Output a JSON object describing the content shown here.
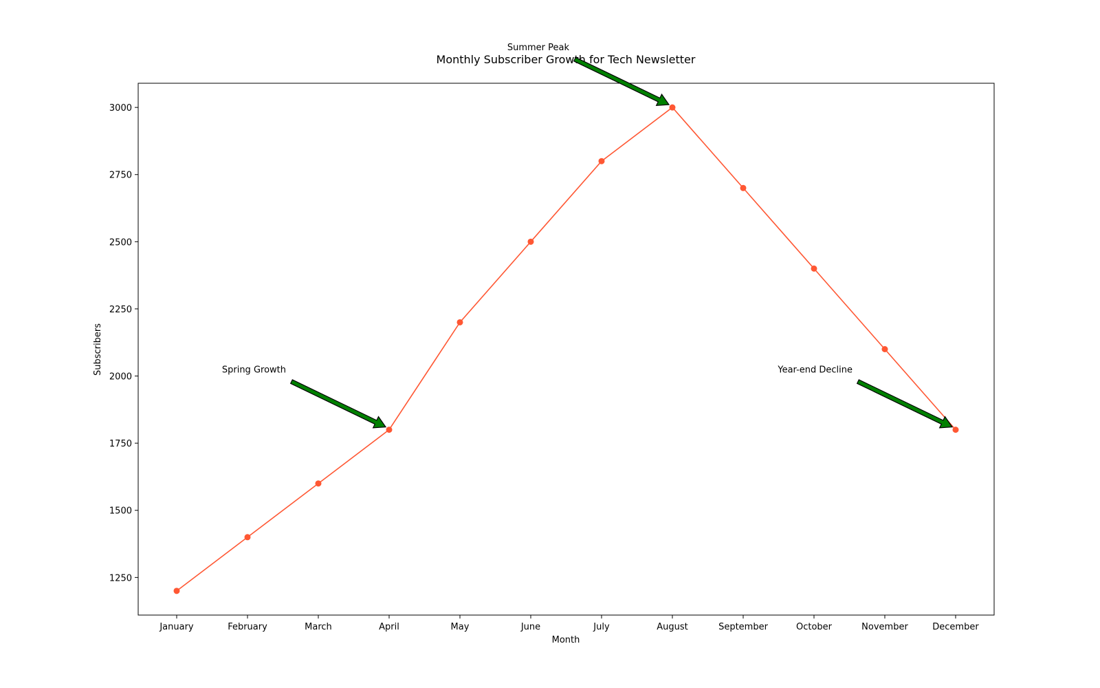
{
  "chart_data": {
    "type": "line",
    "title": "Monthly Subscriber Growth for Tech Newsletter",
    "xlabel": "Month",
    "ylabel": "Subscribers",
    "categories": [
      "January",
      "February",
      "March",
      "April",
      "May",
      "June",
      "July",
      "August",
      "September",
      "October",
      "November",
      "December"
    ],
    "values": [
      1200,
      1400,
      1600,
      1800,
      2200,
      2500,
      2800,
      3000,
      2700,
      2400,
      2100,
      1800
    ],
    "yticks": [
      1250,
      1500,
      1750,
      2000,
      2250,
      2500,
      2750,
      3000
    ],
    "ylim": [
      1110,
      3090
    ],
    "grid": false,
    "line_color": "#ff5733",
    "arrow_color": "#008000",
    "annotations": [
      {
        "text": "Spring Growth",
        "category": "April",
        "value": 1800
      },
      {
        "text": "Summer Peak",
        "category": "August",
        "value": 3000
      },
      {
        "text": "Year-end Decline",
        "category": "December",
        "value": 1800
      }
    ]
  }
}
